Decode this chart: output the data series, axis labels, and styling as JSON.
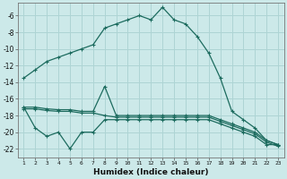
{
  "xlabel": "Humidex (Indice chaleur)",
  "background_color": "#cce9e9",
  "grid_color": "#aed4d4",
  "line_color": "#1c6b5e",
  "x": [
    1,
    2,
    3,
    4,
    5,
    6,
    7,
    8,
    9,
    10,
    11,
    12,
    13,
    14,
    15,
    16,
    17,
    18,
    19,
    20,
    21,
    22,
    23
  ],
  "y_line1": [
    -13.5,
    -12.5,
    -11.5,
    -11.0,
    -10.5,
    -10.0,
    -9.5,
    -7.5,
    -7.0,
    -6.5,
    -6.0,
    -6.5,
    -5.0,
    -6.5,
    -7.0,
    -8.5,
    -10.5,
    -13.5,
    -17.5,
    -18.5,
    -19.5,
    -21.0,
    -21.5
  ],
  "y_upper": [
    -17.0,
    -17.0,
    -17.2,
    -17.3,
    -17.3,
    -17.5,
    -17.5,
    -14.5,
    -18.0,
    -18.0,
    -18.0,
    -18.0,
    -18.0,
    -18.0,
    -18.0,
    -18.0,
    -18.0,
    -18.5,
    -19.0,
    -19.5,
    -20.0,
    -21.0,
    -21.5
  ],
  "y_mid": [
    -17.2,
    -17.2,
    -17.4,
    -17.5,
    -17.5,
    -17.7,
    -17.7,
    -18.0,
    -18.2,
    -18.2,
    -18.2,
    -18.2,
    -18.2,
    -18.2,
    -18.2,
    -18.2,
    -18.2,
    -18.7,
    -19.2,
    -19.7,
    -20.2,
    -21.2,
    -21.7
  ],
  "y_lower": [
    -17.0,
    -19.5,
    -20.5,
    -20.0,
    -22.0,
    -20.0,
    -20.0,
    -18.5,
    -18.5,
    -18.5,
    -18.5,
    -18.5,
    -18.5,
    -18.5,
    -18.5,
    -18.5,
    -18.5,
    -19.0,
    -19.5,
    -20.0,
    -20.5,
    -21.5,
    -21.5
  ],
  "ylim": [
    -23,
    -4.5
  ],
  "xlim": [
    0.5,
    23.5
  ],
  "yticks": [
    -6,
    -8,
    -10,
    -12,
    -14,
    -16,
    -18,
    -20,
    -22
  ]
}
